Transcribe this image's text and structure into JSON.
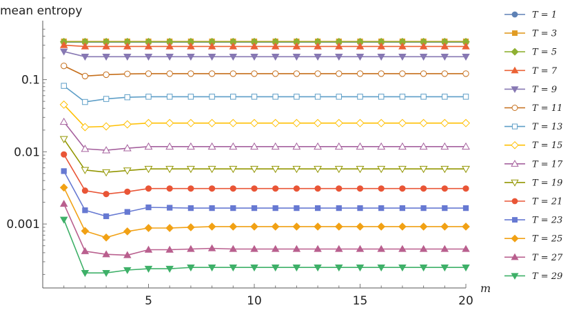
{
  "chart_data": {
    "type": "line",
    "title": "",
    "ylabel": "mean entropy",
    "xlabel": "m",
    "y_scale": "log",
    "xlim": [
      0,
      20
    ],
    "ylim": [
      0.00013,
      0.55
    ],
    "x_ticks": [
      5,
      10,
      15,
      20
    ],
    "x_tick_labels": [
      "5",
      "10",
      "15",
      "20"
    ],
    "y_ticks": [
      0.001,
      0.01,
      0.1
    ],
    "y_tick_labels": [
      "0.001",
      "0.01",
      "0.1"
    ],
    "grid": false,
    "legend_position": "right",
    "x": [
      1,
      2,
      3,
      4,
      5,
      6,
      7,
      8,
      9,
      10,
      11,
      12,
      13,
      14,
      15,
      16,
      17,
      18,
      19,
      20
    ],
    "series": [
      {
        "name": "T = 1",
        "color": "#5e81b5",
        "marker": "circle",
        "filled": true,
        "values": [
          0.33,
          0.33,
          0.33,
          0.33,
          0.33,
          0.33,
          0.33,
          0.33,
          0.33,
          0.33,
          0.33,
          0.33,
          0.33,
          0.33,
          0.33,
          0.33,
          0.33,
          0.33,
          0.33,
          0.33
        ]
      },
      {
        "name": "T = 3",
        "color": "#e19c24",
        "marker": "square",
        "filled": true,
        "values": [
          0.338,
          0.338,
          0.338,
          0.338,
          0.338,
          0.338,
          0.338,
          0.338,
          0.338,
          0.338,
          0.338,
          0.338,
          0.338,
          0.338,
          0.338,
          0.338,
          0.338,
          0.338,
          0.338,
          0.338
        ]
      },
      {
        "name": "T = 5",
        "color": "#8fb032",
        "marker": "diamond",
        "filled": true,
        "values": [
          0.334,
          0.334,
          0.334,
          0.334,
          0.334,
          0.334,
          0.334,
          0.334,
          0.334,
          0.334,
          0.334,
          0.334,
          0.334,
          0.334,
          0.334,
          0.334,
          0.334,
          0.334,
          0.334,
          0.334
        ]
      },
      {
        "name": "T = 7",
        "color": "#eb6235",
        "marker": "triangle-up",
        "filled": true,
        "values": [
          0.3,
          0.288,
          0.288,
          0.288,
          0.288,
          0.288,
          0.288,
          0.288,
          0.288,
          0.288,
          0.288,
          0.288,
          0.288,
          0.288,
          0.288,
          0.288,
          0.288,
          0.288,
          0.288,
          0.288
        ]
      },
      {
        "name": "T = 9",
        "color": "#8778b3",
        "marker": "triangle-down",
        "filled": true,
        "values": [
          0.245,
          0.208,
          0.208,
          0.208,
          0.208,
          0.208,
          0.208,
          0.208,
          0.208,
          0.208,
          0.208,
          0.208,
          0.208,
          0.208,
          0.208,
          0.208,
          0.208,
          0.208,
          0.208,
          0.208
        ]
      },
      {
        "name": "T = 11",
        "color": "#c56e1a",
        "marker": "circle",
        "filled": false,
        "values": [
          0.155,
          0.112,
          0.117,
          0.12,
          0.121,
          0.121,
          0.121,
          0.121,
          0.121,
          0.121,
          0.121,
          0.121,
          0.121,
          0.121,
          0.121,
          0.121,
          0.121,
          0.121,
          0.121,
          0.121
        ]
      },
      {
        "name": "T = 13",
        "color": "#5d9ec7",
        "marker": "square",
        "filled": false,
        "values": [
          0.082,
          0.049,
          0.054,
          0.057,
          0.058,
          0.058,
          0.058,
          0.058,
          0.058,
          0.058,
          0.058,
          0.058,
          0.058,
          0.058,
          0.058,
          0.058,
          0.058,
          0.058,
          0.058,
          0.058
        ]
      },
      {
        "name": "T = 15",
        "color": "#ffbf00",
        "marker": "diamond",
        "filled": false,
        "values": [
          0.045,
          0.022,
          0.0225,
          0.024,
          0.025,
          0.025,
          0.025,
          0.025,
          0.025,
          0.025,
          0.025,
          0.025,
          0.025,
          0.025,
          0.025,
          0.025,
          0.025,
          0.025,
          0.025,
          0.025
        ]
      },
      {
        "name": "T = 17",
        "color": "#a5609d",
        "marker": "triangle-up",
        "filled": false,
        "values": [
          0.026,
          0.011,
          0.0105,
          0.0112,
          0.0118,
          0.0118,
          0.0118,
          0.0118,
          0.0118,
          0.0118,
          0.0118,
          0.0118,
          0.0118,
          0.0118,
          0.0118,
          0.0118,
          0.0118,
          0.0118,
          0.0118,
          0.0118
        ]
      },
      {
        "name": "T = 19",
        "color": "#929600",
        "marker": "triangle-down",
        "filled": false,
        "values": [
          0.015,
          0.0056,
          0.0052,
          0.0055,
          0.0058,
          0.0058,
          0.0058,
          0.0058,
          0.0058,
          0.0058,
          0.0058,
          0.0058,
          0.0058,
          0.0058,
          0.0058,
          0.0058,
          0.0058,
          0.0058,
          0.0058,
          0.0058
        ]
      },
      {
        "name": "T = 21",
        "color": "#e95536",
        "marker": "circle",
        "filled": true,
        "values": [
          0.0092,
          0.0029,
          0.0026,
          0.0028,
          0.0031,
          0.0031,
          0.0031,
          0.0031,
          0.0031,
          0.0031,
          0.0031,
          0.0031,
          0.0031,
          0.0031,
          0.0031,
          0.0031,
          0.0031,
          0.0031,
          0.0031,
          0.0031
        ]
      },
      {
        "name": "T = 23",
        "color": "#6679d2",
        "marker": "square",
        "filled": true,
        "values": [
          0.0054,
          0.00155,
          0.00128,
          0.00147,
          0.0017,
          0.00168,
          0.00166,
          0.00166,
          0.00166,
          0.00166,
          0.00166,
          0.00166,
          0.00166,
          0.00166,
          0.00166,
          0.00166,
          0.00166,
          0.00166,
          0.00166,
          0.00166
        ]
      },
      {
        "name": "T = 25",
        "color": "#f1a114",
        "marker": "diamond",
        "filled": true,
        "values": [
          0.0032,
          0.0008,
          0.00065,
          0.00079,
          0.00088,
          0.00088,
          0.0009,
          0.00092,
          0.00092,
          0.00092,
          0.00092,
          0.00092,
          0.00092,
          0.00092,
          0.00092,
          0.00092,
          0.00092,
          0.00092,
          0.00092,
          0.00092
        ]
      },
      {
        "name": "T = 27",
        "color": "#b95f8e",
        "marker": "triangle-up",
        "filled": true,
        "values": [
          0.0019,
          0.00042,
          0.00038,
          0.00037,
          0.00044,
          0.00044,
          0.00045,
          0.00046,
          0.00045,
          0.00045,
          0.00045,
          0.00045,
          0.00045,
          0.00045,
          0.00045,
          0.00045,
          0.00045,
          0.00045,
          0.00045,
          0.00045
        ]
      },
      {
        "name": "T = 29",
        "color": "#3eb068",
        "marker": "triangle-down",
        "filled": true,
        "values": [
          0.00115,
          0.00021,
          0.00021,
          0.00023,
          0.00024,
          0.00024,
          0.00025,
          0.00025,
          0.00025,
          0.00025,
          0.00025,
          0.00025,
          0.00025,
          0.00025,
          0.00025,
          0.00025,
          0.00025,
          0.00025,
          0.00025,
          0.00025
        ]
      }
    ]
  }
}
